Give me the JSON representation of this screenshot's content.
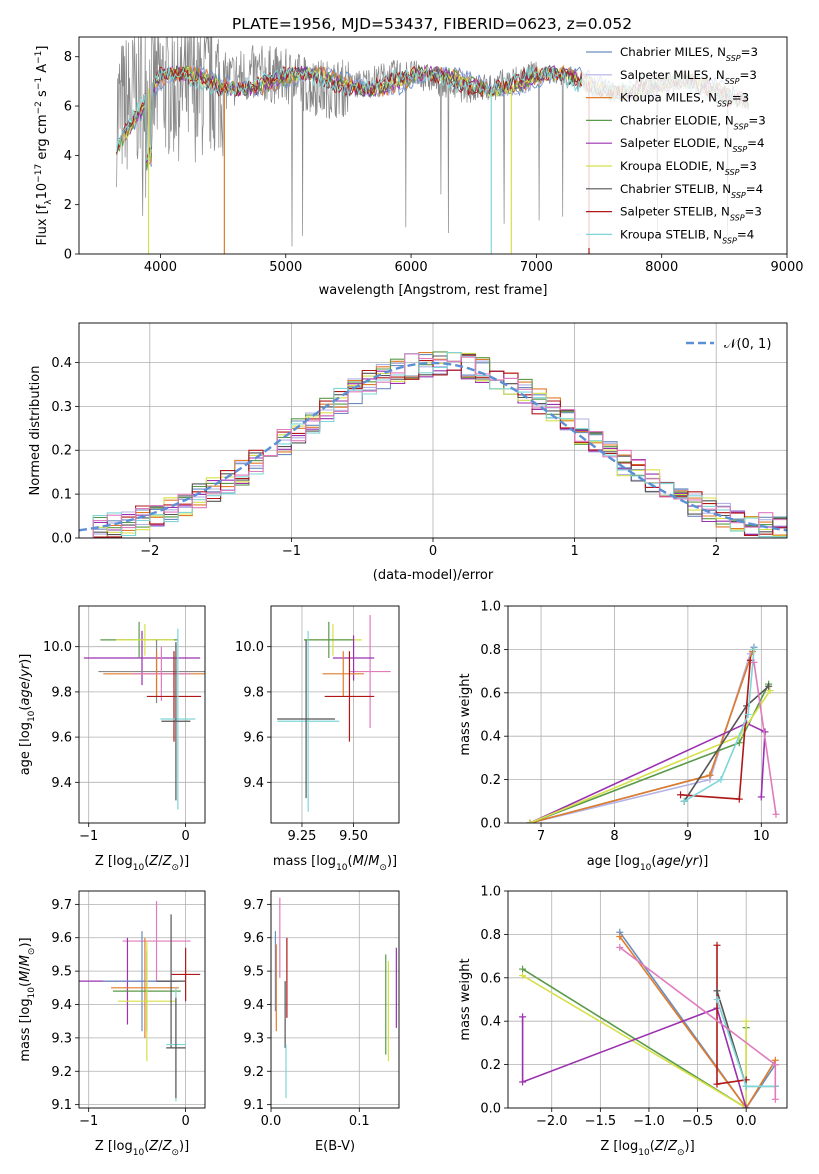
{
  "figure": {
    "title": "PLATE=1956, MJD=53437, FIBERID=0623, z=0.052"
  },
  "chart_data": [
    {
      "id": "spectrum",
      "type": "line",
      "title": "PLATE=1956, MJD=53437, FIBERID=0623, z=0.052",
      "xlabel": "wavelength [Angstrom, rest frame]",
      "ylabel": "Flux [f_λ 10^-17 erg cm^-2 s^-1 A^-1]",
      "xlim": [
        3350,
        9000
      ],
      "ylim": [
        0,
        8.8
      ],
      "xticks": [
        4000,
        5000,
        6000,
        7000,
        8000,
        9000
      ],
      "yticks": [
        0,
        2,
        4,
        6,
        8
      ],
      "grid": false,
      "legend_position": "top-right",
      "data_series": {
        "name": "",
        "color": "#888888",
        "x_range": [
          3650,
          8700
        ],
        "mean_level": 6.8
      },
      "series": [
        {
          "name": "Chabrier MILES, N_SSP=3",
          "color": "#6c8ebf"
        },
        {
          "name": "Salpeter MILES, N_SSP=3",
          "color": "#b2b2e6"
        },
        {
          "name": "Kroupa MILES, N_SSP=3",
          "color": "#e07b2a"
        },
        {
          "name": "Chabrier ELODIE, N_SSP=3",
          "color": "#5a9a4a"
        },
        {
          "name": "Salpeter ELODIE, N_SSP=4",
          "color": "#9b30b0"
        },
        {
          "name": "Kroupa ELODIE, N_SSP=3",
          "color": "#d6e04a"
        },
        {
          "name": "Chabrier STELIB, N_SSP=4",
          "color": "#555555"
        },
        {
          "name": "Salpeter STELIB, N_SSP=3",
          "color": "#b01818"
        },
        {
          "name": "Kroupa STELIB, N_SSP=4",
          "color": "#7fd6d8"
        }
      ],
      "legend": [
        {
          "pre": "Chabrier MILES, N",
          "sub": "SSP",
          "post": "=3"
        },
        {
          "pre": "Salpeter MILES, N",
          "sub": "SSP",
          "post": "=3"
        },
        {
          "pre": "Kroupa MILES, N",
          "sub": "SSP",
          "post": "=3"
        },
        {
          "pre": "Chabrier ELODIE, N",
          "sub": "SSP",
          "post": "=3"
        },
        {
          "pre": "Salpeter ELODIE, N",
          "sub": "SSP",
          "post": "=4"
        },
        {
          "pre": "Kroupa ELODIE, N",
          "sub": "SSP",
          "post": "=3"
        },
        {
          "pre": "Chabrier STELIB, N",
          "sub": "SSP",
          "post": "=4"
        },
        {
          "pre": "Salpeter STELIB, N",
          "sub": "SSP",
          "post": "=3"
        },
        {
          "pre": "Kroupa STELIB, N",
          "sub": "SSP",
          "post": "=4"
        }
      ]
    },
    {
      "id": "residuals",
      "type": "line",
      "xlabel": "(data-model)/error",
      "ylabel": "Normed distribution",
      "xlim": [
        -2.5,
        2.5
      ],
      "ylim": [
        0,
        0.49
      ],
      "xticks": [
        -2,
        -1,
        0,
        1,
        2
      ],
      "yticks": [
        0.0,
        0.1,
        0.2,
        0.3,
        0.4
      ],
      "grid": true,
      "legend": "N(0,1)",
      "legend_position": "top-right",
      "reference_curve": {
        "name": "N(0,1)",
        "mean": 0,
        "sigma": 1,
        "color": "#5b8fd6"
      }
    },
    {
      "id": "age_vs_Z",
      "type": "scatter",
      "xlabel": "Z [log10(Z/Z_sun)]",
      "ylabel": "age [log10(age/yr)]",
      "xlim": [
        -1.1,
        0.2
      ],
      "ylim": [
        9.22,
        10.18
      ],
      "xticks": [
        -1,
        0
      ],
      "yticks": [
        9.4,
        9.6,
        9.8,
        10.0
      ],
      "grid": true,
      "points": [
        {
          "x": -0.45,
          "y": 9.95,
          "xerr": 0.6,
          "yerr": 0.12,
          "color": "#9b30b0"
        },
        {
          "x": -0.48,
          "y": 10.03,
          "xerr": 0.4,
          "yerr": 0.08,
          "color": "#5a9a4a"
        },
        {
          "x": -0.42,
          "y": 10.03,
          "xerr": 0.3,
          "yerr": 0.07,
          "color": "#d6e04a"
        },
        {
          "x": -0.3,
          "y": 9.89,
          "xerr": 0.6,
          "yerr": 0.14,
          "color": "#888888"
        },
        {
          "x": -0.3,
          "y": 9.88,
          "xerr": 0.55,
          "yerr": 0.1,
          "color": "#e07b2a"
        },
        {
          "x": -0.25,
          "y": 9.88,
          "xerr": 0.3,
          "yerr": 0.12,
          "color": "#e07bbd"
        },
        {
          "x": -0.12,
          "y": 9.78,
          "xerr": 0.28,
          "yerr": 0.2,
          "color": "#b01818"
        },
        {
          "x": -0.08,
          "y": 9.68,
          "xerr": 0.18,
          "yerr": 0.4,
          "color": "#7fd6d8"
        },
        {
          "x": -0.1,
          "y": 9.67,
          "xerr": 0.15,
          "yerr": 0.35,
          "color": "#555555"
        }
      ]
    },
    {
      "id": "age_vs_mass",
      "type": "scatter",
      "xlabel": "mass [log10(M/M_sun)]",
      "ylabel": "",
      "xlim": [
        9.1,
        9.72
      ],
      "ylim": [
        9.22,
        10.18
      ],
      "xticks": [
        9.25,
        9.5
      ],
      "yticks": [
        9.4,
        9.6,
        9.8,
        10.0
      ],
      "grid": true,
      "points": [
        {
          "x": 9.4,
          "y": 10.03,
          "xerr": 0.14,
          "yerr": 0.07,
          "color": "#d6e04a"
        },
        {
          "x": 9.38,
          "y": 10.03,
          "xerr": 0.12,
          "yerr": 0.08,
          "color": "#5a9a4a"
        },
        {
          "x": 9.58,
          "y": 9.89,
          "xerr": 0.1,
          "yerr": 0.25,
          "color": "#e07bbd"
        },
        {
          "x": 9.5,
          "y": 9.95,
          "xerr": 0.1,
          "yerr": 0.1,
          "color": "#9b30b0"
        },
        {
          "x": 9.45,
          "y": 9.88,
          "xerr": 0.1,
          "yerr": 0.1,
          "color": "#e07b2a"
        },
        {
          "x": 9.48,
          "y": 9.78,
          "xerr": 0.12,
          "yerr": 0.2,
          "color": "#b01818"
        },
        {
          "x": 9.28,
          "y": 9.67,
          "xerr": 0.15,
          "yerr": 0.4,
          "color": "#7fd6d8"
        },
        {
          "x": 9.27,
          "y": 9.68,
          "xerr": 0.14,
          "yerr": 0.35,
          "color": "#555555"
        }
      ]
    },
    {
      "id": "weight_vs_age",
      "type": "line",
      "xlabel": "age [log10(age/yr)]",
      "ylabel": "mass weight",
      "xlim": [
        6.55,
        10.35
      ],
      "ylim": [
        0,
        1.0
      ],
      "xticks": [
        7,
        8,
        9,
        10
      ],
      "yticks": [
        0.0,
        0.2,
        0.4,
        0.6,
        0.8,
        1.0
      ],
      "grid": true,
      "series": [
        {
          "name": "Chabrier MILES",
          "color": "#6c8ebf",
          "x": [
            6.85,
            9.3,
            9.9
          ],
          "y": [
            0.0,
            0.22,
            0.81
          ]
        },
        {
          "name": "Salpeter MILES",
          "color": "#b2b2e6",
          "x": [
            6.85,
            9.3,
            9.85
          ],
          "y": [
            0.0,
            0.2,
            0.78
          ]
        },
        {
          "name": "Kroupa MILES",
          "color": "#e07b2a",
          "x": [
            6.85,
            9.3,
            9.88
          ],
          "y": [
            0.0,
            0.22,
            0.79
          ]
        },
        {
          "name": "Chabrier ELODIE",
          "color": "#5a9a4a",
          "x": [
            6.85,
            9.7,
            10.1
          ],
          "y": [
            0.0,
            0.37,
            0.64
          ]
        },
        {
          "name": "Salpeter ELODIE",
          "color": "#9b30b0",
          "x": [
            6.85,
            9.8,
            10.05,
            10.0
          ],
          "y": [
            0.0,
            0.46,
            0.42,
            0.12
          ]
        },
        {
          "name": "Kroupa ELODIE",
          "color": "#d6e04a",
          "x": [
            6.85,
            9.7,
            10.12
          ],
          "y": [
            0.0,
            0.4,
            0.61
          ]
        },
        {
          "name": "Chabrier STELIB",
          "color": "#555555",
          "x": [
            8.95,
            9.8,
            10.1
          ],
          "y": [
            0.1,
            0.54,
            0.63
          ]
        },
        {
          "name": "Salpeter STELIB",
          "color": "#b01818",
          "x": [
            8.9,
            9.7,
            9.85
          ],
          "y": [
            0.13,
            0.11,
            0.75
          ]
        },
        {
          "name": "Kroupa STELIB",
          "color": "#7fd6d8",
          "x": [
            8.95,
            9.45,
            9.82,
            9.9
          ],
          "y": [
            0.1,
            0.2,
            0.5,
            0.8
          ]
        },
        {
          "name": "",
          "color": "#e07bbd",
          "x": [
            9.9,
            10.2
          ],
          "y": [
            0.74,
            0.04
          ]
        }
      ]
    },
    {
      "id": "mass_vs_Z",
      "type": "scatter",
      "xlabel": "Z [log10(Z/Z_sun)]",
      "ylabel": "mass [log10(M/M_sun)]",
      "xlim": [
        -1.1,
        0.2
      ],
      "ylim": [
        9.09,
        9.74
      ],
      "xticks": [
        -1,
        0
      ],
      "yticks": [
        9.1,
        9.2,
        9.3,
        9.4,
        9.5,
        9.6,
        9.7
      ],
      "grid": true,
      "points": [
        {
          "x": -0.3,
          "y": 9.59,
          "xerr": 0.35,
          "yerr": 0.12,
          "color": "#e07bbd"
        },
        {
          "x": -0.6,
          "y": 9.47,
          "xerr": 0.5,
          "yerr": 0.13,
          "color": "#9b30b0"
        },
        {
          "x": -0.45,
          "y": 9.47,
          "xerr": 0.4,
          "yerr": 0.15,
          "color": "#6c8ebf"
        },
        {
          "x": -0.42,
          "y": 9.45,
          "xerr": 0.35,
          "yerr": 0.15,
          "color": "#e07b2a"
        },
        {
          "x": -0.4,
          "y": 9.44,
          "xerr": 0.35,
          "yerr": 0.12,
          "color": "#5a9a4a"
        },
        {
          "x": -0.4,
          "y": 9.41,
          "xerr": 0.3,
          "yerr": 0.18,
          "color": "#d6e04a"
        },
        {
          "x": 0.0,
          "y": 9.49,
          "xerr": 0.15,
          "yerr": 0.08,
          "color": "#b01818"
        },
        {
          "x": -0.15,
          "y": 9.47,
          "xerr": 0.15,
          "yerr": 0.2,
          "color": "#555555"
        },
        {
          "x": -0.1,
          "y": 9.28,
          "xerr": 0.1,
          "yerr": 0.17,
          "color": "#7fd6d8"
        },
        {
          "x": -0.1,
          "y": 9.27,
          "xerr": 0.1,
          "yerr": 0.15,
          "color": "#555555"
        }
      ]
    },
    {
      "id": "mass_vs_EBV",
      "type": "scatter",
      "xlabel": "E(B-V)",
      "ylabel": "",
      "xlim": [
        0.0,
        0.145
      ],
      "ylim": [
        9.09,
        9.74
      ],
      "xticks": [
        0.0,
        0.1
      ],
      "yticks": [
        9.1,
        9.2,
        9.3,
        9.4,
        9.5,
        9.6,
        9.7
      ],
      "grid": true,
      "points": [
        {
          "x": 0.005,
          "y": 9.5,
          "xerr": 0,
          "yerr": 0.12,
          "color": "#6c8ebf"
        },
        {
          "x": 0.006,
          "y": 9.45,
          "xerr": 0,
          "yerr": 0.13,
          "color": "#e07b2a"
        },
        {
          "x": 0.01,
          "y": 9.6,
          "xerr": 0,
          "yerr": 0.12,
          "color": "#e07bbd"
        },
        {
          "x": 0.018,
          "y": 9.48,
          "xerr": 0,
          "yerr": 0.12,
          "color": "#b01818"
        },
        {
          "x": 0.016,
          "y": 9.37,
          "xerr": 0,
          "yerr": 0.1,
          "color": "#555555"
        },
        {
          "x": 0.017,
          "y": 9.2,
          "xerr": 0,
          "yerr": 0.08,
          "color": "#7fd6d8"
        },
        {
          "x": 0.13,
          "y": 9.4,
          "xerr": 0,
          "yerr": 0.15,
          "color": "#5a9a4a"
        },
        {
          "x": 0.133,
          "y": 9.38,
          "xerr": 0,
          "yerr": 0.15,
          "color": "#d6e04a"
        },
        {
          "x": 0.142,
          "y": 9.45,
          "xerr": 0,
          "yerr": 0.12,
          "color": "#9b30b0"
        }
      ]
    },
    {
      "id": "weight_vs_Z",
      "type": "line",
      "xlabel": "Z [log10(Z/Z_sun)]",
      "ylabel": "mass weight",
      "xlim": [
        -2.45,
        0.42
      ],
      "ylim": [
        0,
        1.0
      ],
      "xticks": [
        -2.0,
        -1.5,
        -1.0,
        -0.5,
        0.0
      ],
      "yticks": [
        0.0,
        0.2,
        0.4,
        0.6,
        0.8,
        1.0
      ],
      "grid": true,
      "series": [
        {
          "name": "Chabrier MILES",
          "color": "#6c8ebf",
          "x": [
            -1.3,
            0.0,
            0.3
          ],
          "y": [
            0.81,
            0.0,
            0.2
          ]
        },
        {
          "name": "Kroupa MILES",
          "color": "#e07b2a",
          "x": [
            -1.3,
            0.0,
            0.3
          ],
          "y": [
            0.79,
            0.0,
            0.22
          ]
        },
        {
          "name": "Chabrier ELODIE",
          "color": "#5a9a4a",
          "x": [
            -2.3,
            0.0,
            0.0
          ],
          "y": [
            0.64,
            0.0,
            0.37
          ]
        },
        {
          "name": "Kroupa ELODIE",
          "color": "#d6e04a",
          "x": [
            -2.3,
            0.0,
            0.0
          ],
          "y": [
            0.61,
            0.0,
            0.4
          ]
        },
        {
          "name": "Salpeter ELODIE",
          "color": "#9b30b0",
          "x": [
            -2.3,
            -2.3,
            -0.3,
            0.0
          ],
          "y": [
            0.42,
            0.12,
            0.46,
            0.0
          ]
        },
        {
          "name": "Salpeter STELIB",
          "color": "#b01818",
          "x": [
            -0.3,
            -0.3,
            0.0
          ],
          "y": [
            0.75,
            0.11,
            0.13
          ]
        },
        {
          "name": "Chabrier STELIB",
          "color": "#555555",
          "x": [
            -0.3,
            0.0,
            0.3
          ],
          "y": [
            0.54,
            0.1,
            0.1
          ]
        },
        {
          "name": "Kroupa STELIB",
          "color": "#7fd6d8",
          "x": [
            -0.3,
            0.0,
            0.3
          ],
          "y": [
            0.5,
            0.1,
            0.1
          ]
        },
        {
          "name": "",
          "color": "#e07bbd",
          "x": [
            -1.3,
            0.3,
            0.3
          ],
          "y": [
            0.74,
            0.2,
            0.04
          ]
        }
      ]
    }
  ]
}
